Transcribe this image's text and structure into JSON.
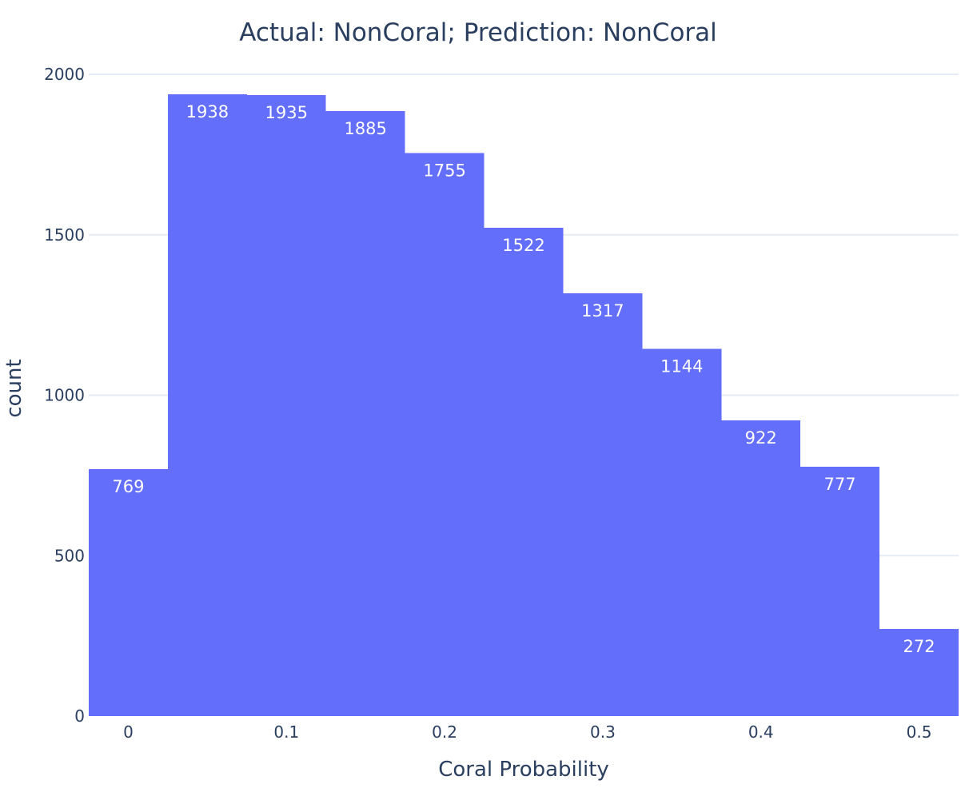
{
  "chart_data": {
    "type": "bar",
    "title": "Actual: NonCoral; Prediction: NonCoral",
    "xlabel": "Coral Probability",
    "ylabel": "count",
    "bin_width": 0.05,
    "bins": [
      {
        "x0": -0.025,
        "x1": 0.025,
        "value": 769
      },
      {
        "x0": 0.025,
        "x1": 0.075,
        "value": 1938
      },
      {
        "x0": 0.075,
        "x1": 0.125,
        "value": 1935
      },
      {
        "x0": 0.125,
        "x1": 0.175,
        "value": 1885
      },
      {
        "x0": 0.175,
        "x1": 0.225,
        "value": 1755
      },
      {
        "x0": 0.225,
        "x1": 0.275,
        "value": 1522
      },
      {
        "x0": 0.275,
        "x1": 0.325,
        "value": 1317
      },
      {
        "x0": 0.325,
        "x1": 0.375,
        "value": 1144
      },
      {
        "x0": 0.375,
        "x1": 0.425,
        "value": 922
      },
      {
        "x0": 0.425,
        "x1": 0.475,
        "value": 777
      },
      {
        "x0": 0.475,
        "x1": 0.525,
        "value": 272
      }
    ],
    "xlim": [
      -0.025,
      0.525
    ],
    "ylim": [
      0,
      2000
    ],
    "x_ticks": [
      "0",
      "0.1",
      "0.2",
      "0.3",
      "0.4",
      "0.5"
    ],
    "x_tick_values": [
      0,
      0.1,
      0.2,
      0.3,
      0.4,
      0.5
    ],
    "y_ticks": [
      "0",
      "500",
      "1000",
      "1500",
      "2000"
    ],
    "y_tick_values": [
      0,
      500,
      1000,
      1500,
      2000
    ],
    "grid": true,
    "bar_color": "#636efa",
    "text_color": "#2a3f5f",
    "grid_color": "#e5ecf6"
  }
}
